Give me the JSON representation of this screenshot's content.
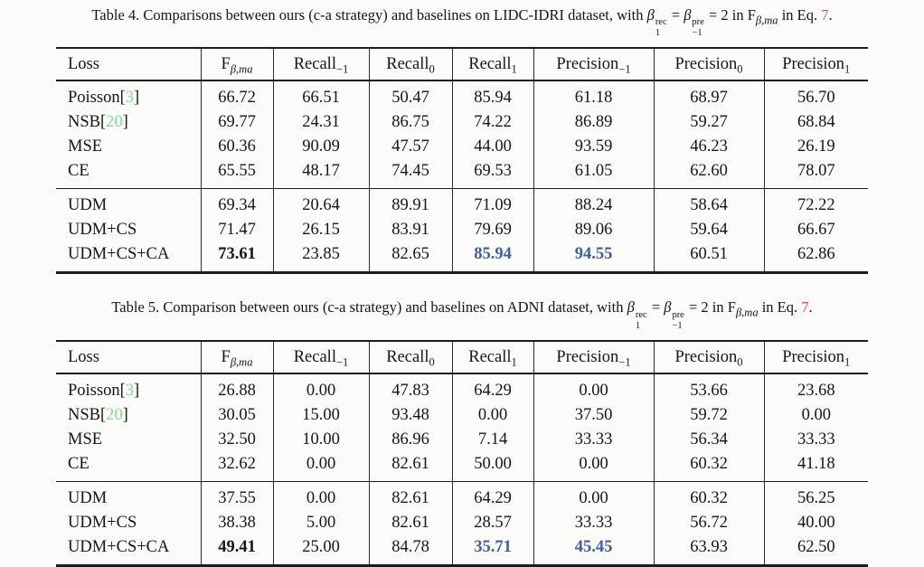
{
  "colors": {
    "citation_green": "#7fe08f",
    "highlight_blue": "#3d5f9f",
    "eq_ref_red": "#ee4563",
    "rule_black": "#1c1c1c"
  },
  "tables": [
    {
      "caption": {
        "lead": "Table 4. Comparisons between ours (c-a strategy) and baselines on LIDC-IDRI dataset, with ",
        "beta": "β",
        "b1_sup": "rec",
        "b1_sub": "1",
        "eq": " = ",
        "b2_sup": "pre",
        "b2_sub": "−1",
        "mid": " = 2 in ",
        "f": "F",
        "f_sub": "β,ma",
        "tail": " in Eq. ",
        "eq_ref": "7",
        "dot": "."
      },
      "headers": [
        {
          "base": "Loss",
          "sub": ""
        },
        {
          "base": "F",
          "sub": "β,ma",
          "subItalic": true
        },
        {
          "base": "Recall",
          "sub": "−1"
        },
        {
          "base": "Recall",
          "sub": "0"
        },
        {
          "base": "Recall",
          "sub": "1"
        },
        {
          "base": "Precision",
          "sub": "−1"
        },
        {
          "base": "Precision",
          "sub": "0"
        },
        {
          "base": "Precision",
          "sub": "1"
        }
      ],
      "groups": [
        {
          "rows": [
            {
              "label": "Poisson",
              "cite": "3",
              "values": [
                "66.72",
                "66.51",
                "50.47",
                "85.94",
                "61.18",
                "68.97",
                "56.70"
              ]
            },
            {
              "label": "NSB",
              "cite": "20",
              "values": [
                "69.77",
                "24.31",
                "86.75",
                "74.22",
                "86.89",
                "59.27",
                "68.84"
              ]
            },
            {
              "label": "MSE",
              "values": [
                "60.36",
                "90.09",
                "47.57",
                "44.00",
                "93.59",
                "46.23",
                "26.19"
              ]
            },
            {
              "label": "CE",
              "values": [
                "65.55",
                "48.17",
                "74.45",
                "69.53",
                "61.05",
                "62.60",
                "78.07"
              ]
            }
          ]
        },
        {
          "rows": [
            {
              "label": "UDM",
              "values": [
                "69.34",
                "20.64",
                "89.91",
                "71.09",
                "88.24",
                "58.64",
                "72.22"
              ]
            },
            {
              "label": "UDM+CS",
              "values": [
                "71.47",
                "26.15",
                "83.91",
                "79.69",
                "89.06",
                "59.64",
                "66.67"
              ]
            },
            {
              "label": "UDM+CS+CA",
              "values": [
                "73.61",
                "23.85",
                "82.65",
                "85.94",
                "94.55",
                "60.51",
                "62.86"
              ],
              "bold": [
                0
              ],
              "blue": [
                3,
                4
              ]
            }
          ]
        }
      ]
    },
    {
      "caption": {
        "lead": "Table 5. Comparison between ours (c-a strategy) and baselines on ADNI dataset, with ",
        "beta": "β",
        "b1_sup": "rec",
        "b1_sub": "1",
        "eq": " = ",
        "b2_sup": "pre",
        "b2_sub": "−1",
        "mid": " = 2 in ",
        "f": "F",
        "f_sub": "β,ma",
        "tail": " in Eq. ",
        "eq_ref": "7",
        "dot": "."
      },
      "headers": [
        {
          "base": "Loss",
          "sub": ""
        },
        {
          "base": "F",
          "sub": "β,ma",
          "subItalic": true
        },
        {
          "base": "Recall",
          "sub": "−1"
        },
        {
          "base": "Recall",
          "sub": "0"
        },
        {
          "base": "Recall",
          "sub": "1"
        },
        {
          "base": "Precision",
          "sub": "−1"
        },
        {
          "base": "Precision",
          "sub": "0"
        },
        {
          "base": "Precision",
          "sub": "1"
        }
      ],
      "groups": [
        {
          "rows": [
            {
              "label": "Poisson",
              "cite": "3",
              "values": [
                "26.88",
                "0.00",
                "47.83",
                "64.29",
                "0.00",
                "53.66",
                "23.68"
              ]
            },
            {
              "label": "NSB",
              "cite": "20",
              "values": [
                "30.05",
                "15.00",
                "93.48",
                "0.00",
                "37.50",
                "59.72",
                "0.00"
              ]
            },
            {
              "label": "MSE",
              "values": [
                "32.50",
                "10.00",
                "86.96",
                "7.14",
                "33.33",
                "56.34",
                "33.33"
              ]
            },
            {
              "label": "CE",
              "values": [
                "32.62",
                "0.00",
                "82.61",
                "50.00",
                "0.00",
                "60.32",
                "41.18"
              ]
            }
          ]
        },
        {
          "rows": [
            {
              "label": "UDM",
              "values": [
                "37.55",
                "0.00",
                "82.61",
                "64.29",
                "0.00",
                "60.32",
                "56.25"
              ]
            },
            {
              "label": "UDM+CS",
              "values": [
                "38.38",
                "5.00",
                "82.61",
                "28.57",
                "33.33",
                "56.72",
                "40.00"
              ]
            },
            {
              "label": "UDM+CS+CA",
              "values": [
                "49.41",
                "25.00",
                "84.78",
                "35.71",
                "45.45",
                "63.93",
                "62.50"
              ],
              "bold": [
                0
              ],
              "blue": [
                3,
                4
              ]
            }
          ]
        }
      ]
    }
  ]
}
